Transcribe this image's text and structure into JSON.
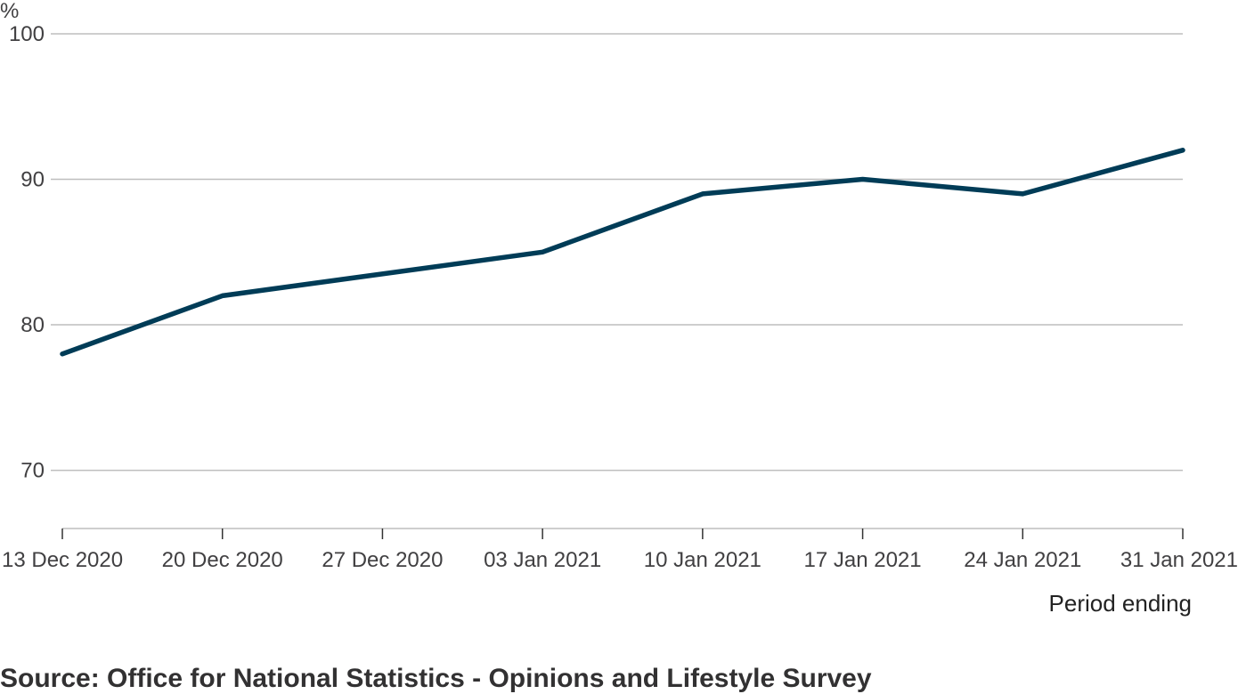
{
  "chart_data": {
    "type": "line",
    "title": "",
    "ylabel": "%",
    "xlabel": "Period ending",
    "source": "Source: Office for National Statistics - Opinions and Lifestyle Survey",
    "ylim": [
      66,
      100
    ],
    "yticks": [
      70,
      80,
      90,
      100
    ],
    "grid": true,
    "categories": [
      "13 Dec 2020",
      "20 Dec 2020",
      "27 Dec 2020",
      "03 Jan 2021",
      "10 Jan 2021",
      "17 Jan 2021",
      "24 Jan 2021",
      "31 Jan 2021"
    ],
    "x": [
      "13 Dec 2020",
      "20 Dec 2020",
      "03 Jan 2021",
      "10 Jan 2021",
      "17 Jan 2021",
      "24 Jan 2021",
      "31 Jan 2021"
    ],
    "series": [
      {
        "values": [
          78,
          82,
          85,
          89,
          90,
          89,
          92
        ],
        "color": "#003c57"
      }
    ],
    "colors": {
      "grid": "#bebebe",
      "axis": "#bebebe",
      "text": "#414042"
    }
  }
}
